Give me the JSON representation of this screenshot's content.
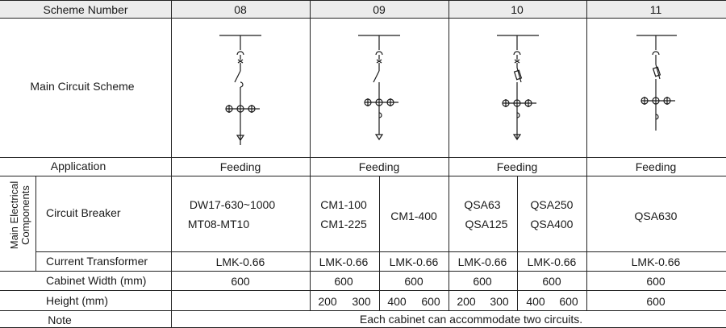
{
  "header": {
    "label": "Scheme Number",
    "schemes": [
      "08",
      "09",
      "10",
      "11"
    ]
  },
  "rows": {
    "main_circuit": "Main Circuit Scheme",
    "application": "Application",
    "main_components": "Main Electrical Components",
    "circuit_breaker": "Circuit Breaker",
    "current_transformer": "Current Transformer",
    "cabinet_width": "Cabinet Width (mm)",
    "height": "Height (mm)",
    "note": "Note"
  },
  "application": [
    "Feeding",
    "Feeding",
    "Feeding",
    "Feeding"
  ],
  "breaker": {
    "s08": [
      "DW17-630~1000",
      "MT08-MT10"
    ],
    "s09a": [
      "CM1-100",
      "CM1-225"
    ],
    "s09b": "CM1-400",
    "s10a": [
      "QSA63",
      "QSA125"
    ],
    "s10b": [
      "QSA250",
      "QSA400"
    ],
    "s11": "QSA630"
  },
  "ct": [
    "LMK-0.66",
    "LMK-0.66",
    "LMK-0.66",
    "LMK-0.66",
    "LMK-0.66",
    "LMK-0.66"
  ],
  "width": [
    "600",
    "600",
    "600",
    "600",
    "600",
    "600"
  ],
  "height_vals": {
    "s09a": [
      "200",
      "300"
    ],
    "s09b": [
      "400",
      "600"
    ],
    "s10a": [
      "200",
      "300"
    ],
    "s10b": [
      "400",
      "600"
    ],
    "s11": "600"
  },
  "note_text": "Each cabinet can accommodate two circuits."
}
